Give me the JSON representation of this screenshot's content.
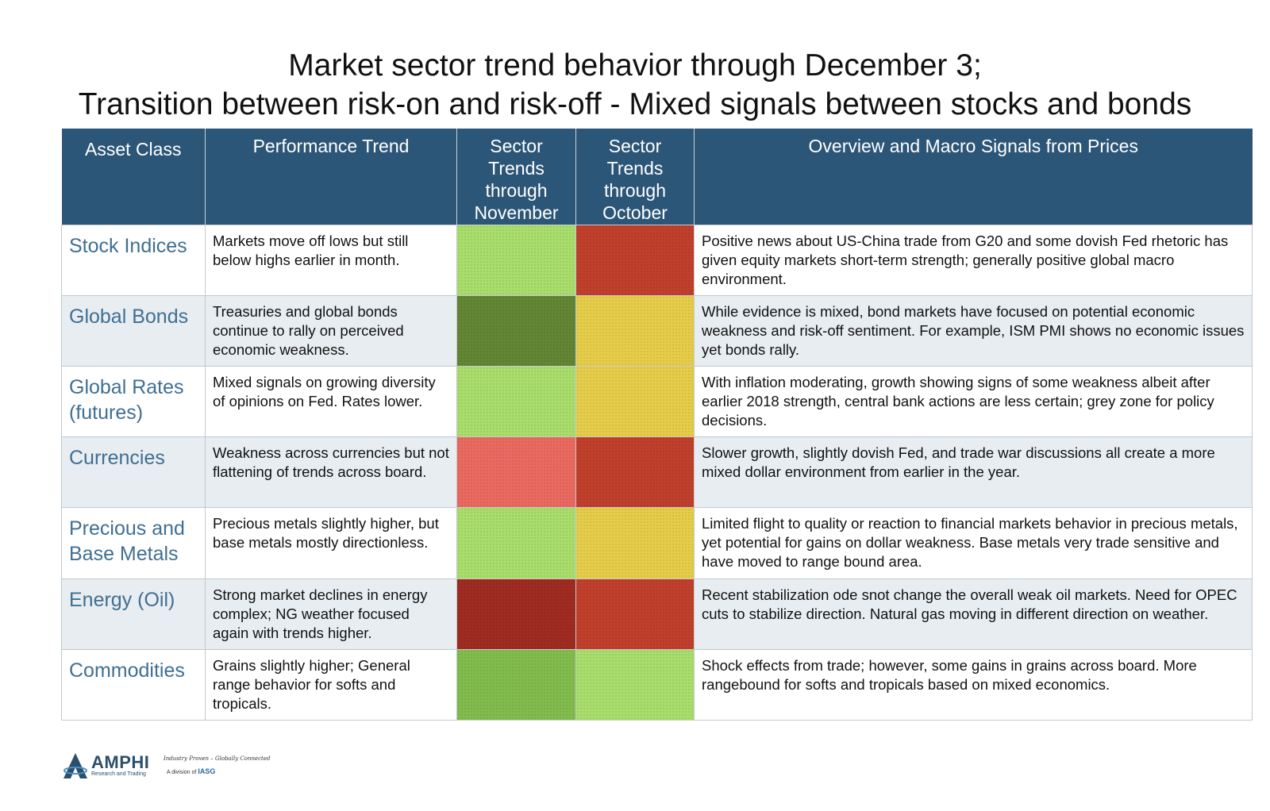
{
  "title": {
    "line1": "Market sector trend behavior through December 3;",
    "line2": "Transition between risk-on and risk-off - Mixed signals between stocks and bonds"
  },
  "table": {
    "headers": {
      "asset": "Asset Class",
      "performance": "Performance Trend",
      "november": "Sector Trends through November",
      "october": "Sector Trends through October",
      "overview": "Overview and Macro Signals from Prices"
    },
    "rows": [
      {
        "asset": "Stock Indices",
        "performance": "Markets move off lows but still below highs earlier in month.",
        "november_color": "#a9dd6c",
        "october_color": "#c0402c",
        "overview": "Positive news about US-China trade from G20 and some dovish Fed rhetoric has given equity markets short-term strength; generally positive global macro environment."
      },
      {
        "asset": "Global Bonds",
        "performance": "Treasuries and global bonds continue to rally on perceived economic weakness.",
        "november_color": "#628634",
        "october_color": "#e6cd49",
        "overview": "While evidence is mixed, bond markets have focused on potential economic weakness and risk-off sentiment. For example, ISM PMI shows no economic issues yet bonds rally."
      },
      {
        "asset": "Global Rates (futures)",
        "performance": "Mixed signals on growing diversity of opinions on Fed. Rates lower.",
        "november_color": "#a9dd6c",
        "october_color": "#e6cd49",
        "overview": "With inflation moderating, growth showing signs of some weakness albeit after earlier 2018 strength, central bank actions are less certain; grey zone for policy decisions."
      },
      {
        "asset": "Currencies",
        "performance": "Weakness across currencies but not flattening of trends across board.",
        "november_color": "#ea6a60",
        "october_color": "#c0402c",
        "overview": "Slower growth, slightly dovish Fed, and trade war discussions all create a more mixed dollar environment from earlier in the year."
      },
      {
        "asset": "Precious and Base Metals",
        "performance": "Precious metals slightly higher, but base metals mostly directionless.",
        "november_color": "#a9dd6c",
        "october_color": "#e6cd49",
        "overview": "Limited flight to quality or reaction to financial markets behavior in precious metals, yet potential for gains on dollar weakness. Base metals very trade sensitive and have moved to range bound area."
      },
      {
        "asset": "Energy (Oil)",
        "performance": "Strong market declines in energy complex; NG weather focused again with trends higher.",
        "november_color": "#a02b22",
        "october_color": "#c0402c",
        "overview": "Recent stabilization ode snot change the overall weak oil markets. Need for OPEC cuts to stabilize direction. Natural gas moving in different direction on weather."
      },
      {
        "asset": "Commodities",
        "performance": "Grains slightly higher; General range behavior for softs and tropicals.",
        "november_color": "#82bc4d",
        "october_color": "#a9dd6c",
        "overview": "Shock effects from trade; however, some gains in grains across board. More rangebound for softs and tropicals based on mixed economics."
      }
    ]
  },
  "footer": {
    "logo_name": "AMPHI",
    "logo_sub": "Research and Trading",
    "tagline": "Industry Proven – Globally Connected",
    "division_prefix": "A division of",
    "division_brand": "IASG"
  }
}
